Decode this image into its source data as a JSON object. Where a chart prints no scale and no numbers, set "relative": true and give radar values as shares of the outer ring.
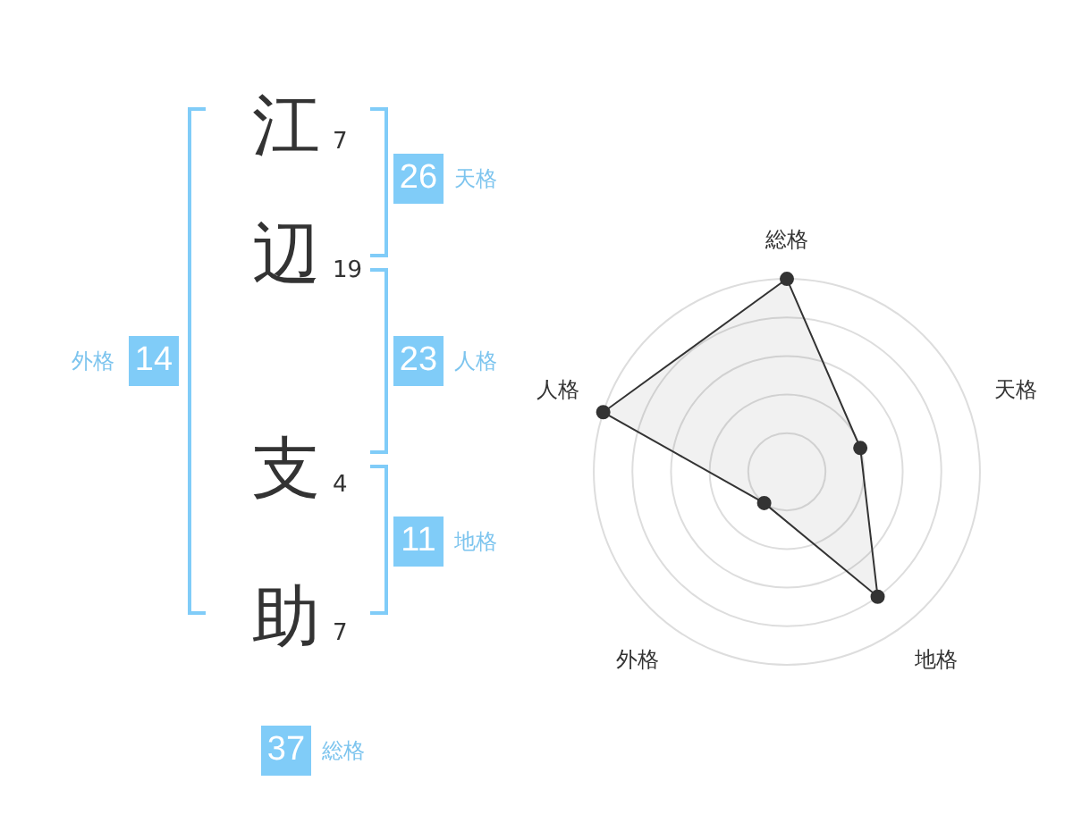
{
  "chart_data": [
    {
      "type": "other",
      "categories": [
        "江",
        "辺",
        "支",
        "助"
      ],
      "values": [
        7,
        19,
        4,
        7
      ],
      "data_labels": true,
      "annotations": [
        "26",
        "天格",
        "23",
        "人格",
        "11",
        "地格",
        "14",
        "外格",
        "37",
        "総格"
      ]
    },
    {
      "type": "radar",
      "categories": [
        "総格",
        "天格",
        "地格",
        "外格",
        "人格"
      ],
      "series": [
        {
          "color": "#333333",
          "values": [
            1,
            0.4,
            0.8,
            0.2,
            1
          ]
        }
      ],
      "relative": true,
      "grid": true,
      "marker": "circle",
      "legend": false
    }
  ]
}
